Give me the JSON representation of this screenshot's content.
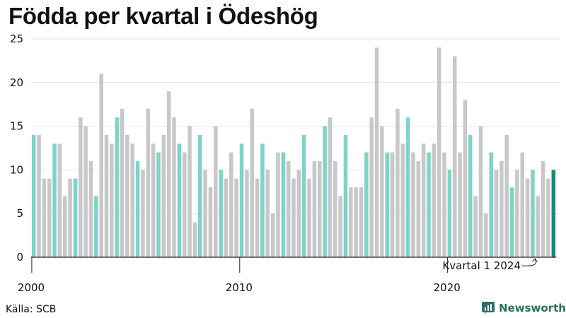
{
  "title": "Födda per kvartal i Ödeshög",
  "source": "Källa: SCB",
  "brand": "Newsworthy",
  "colors": {
    "gray": "#c8c8c8",
    "teal": "#7fd3c8",
    "highlight": "#1a8a7e",
    "brand": "#2f6f62"
  },
  "chart_data": {
    "type": "bar",
    "title": "Födda per kvartal i Ödeshög",
    "xlabel": "",
    "ylabel": "",
    "ylim": [
      0,
      25
    ],
    "y_ticks": [
      "0",
      "5",
      "10",
      "15",
      "20",
      "25"
    ],
    "x_ticks": [
      "2000",
      "2010",
      "2020"
    ],
    "grid": true,
    "highlight_rule": "teal = quarter 1 of each year; darker teal = latest quarter",
    "start_year": 2000,
    "annotation": "Kvartal 1 2024",
    "series": [
      {
        "values": [
          14,
          14,
          9,
          9,
          13,
          13,
          7,
          9,
          9,
          16,
          15,
          11,
          7,
          21,
          14,
          13,
          16,
          17,
          14,
          13,
          11,
          10,
          17,
          13,
          12,
          14,
          19,
          16,
          13,
          12,
          15,
          4,
          14,
          10,
          8,
          15,
          10,
          9,
          12,
          9,
          13,
          10,
          17,
          9,
          13,
          10,
          5,
          12,
          12,
          11,
          9,
          10,
          14,
          9,
          11,
          11,
          15,
          16,
          11,
          7,
          14,
          8,
          8,
          8,
          12,
          16,
          24,
          15,
          12,
          12,
          17,
          13,
          16,
          12,
          11,
          13,
          12,
          13,
          24,
          12,
          10,
          23,
          12,
          18,
          14,
          7,
          15,
          5,
          12,
          10,
          11,
          14,
          8,
          10,
          12,
          9,
          10,
          7,
          11,
          9,
          10
        ]
      }
    ]
  }
}
